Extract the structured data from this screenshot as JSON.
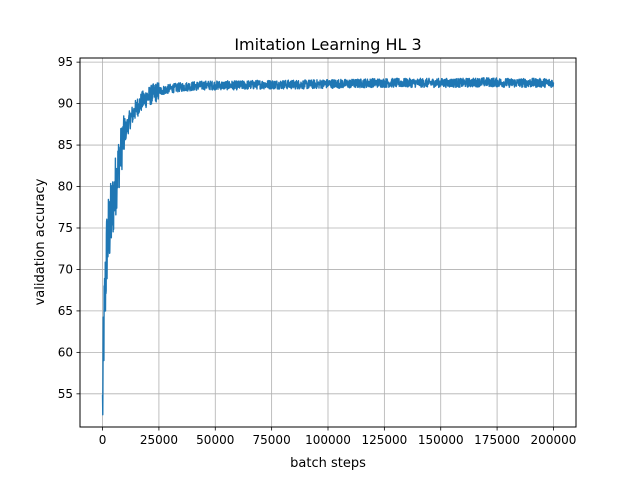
{
  "chart_data": {
    "type": "line",
    "title": "Imitation Learning HL 3",
    "xlabel": "batch steps",
    "ylabel": "validation accuracy",
    "xlim": [
      -10000,
      210000
    ],
    "ylim": [
      51,
      95.5
    ],
    "xticks": [
      0,
      25000,
      50000,
      75000,
      100000,
      125000,
      150000,
      175000,
      200000
    ],
    "yticks": [
      55,
      60,
      65,
      70,
      75,
      80,
      85,
      90,
      95
    ],
    "grid": true,
    "line_color": "#1f77b4",
    "series": [
      {
        "name": "",
        "x": [
          0,
          500,
          1000,
          1500,
          2000,
          3000,
          4000,
          5000,
          6000,
          7000,
          8000,
          9000,
          10000,
          12000,
          14000,
          16000,
          18000,
          20000,
          22500,
          25000,
          30000,
          35000,
          40000,
          45000,
          50000,
          60000,
          70000,
          80000,
          90000,
          100000,
          110000,
          120000,
          130000,
          140000,
          150000,
          160000,
          170000,
          180000,
          190000,
          200000
        ],
        "y": [
          53,
          62,
          66,
          70,
          73,
          75,
          76.5,
          78.5,
          80.5,
          82.5,
          84,
          85.5,
          86.5,
          88,
          89,
          89.8,
          90.4,
          90.8,
          91.2,
          91.5,
          91.8,
          92.0,
          92.1,
          92.2,
          92.2,
          92.2,
          92.3,
          92.3,
          92.3,
          92.4,
          92.4,
          92.5,
          92.5,
          92.5,
          92.5,
          92.5,
          92.6,
          92.5,
          92.5,
          92.5
        ]
      }
    ]
  }
}
